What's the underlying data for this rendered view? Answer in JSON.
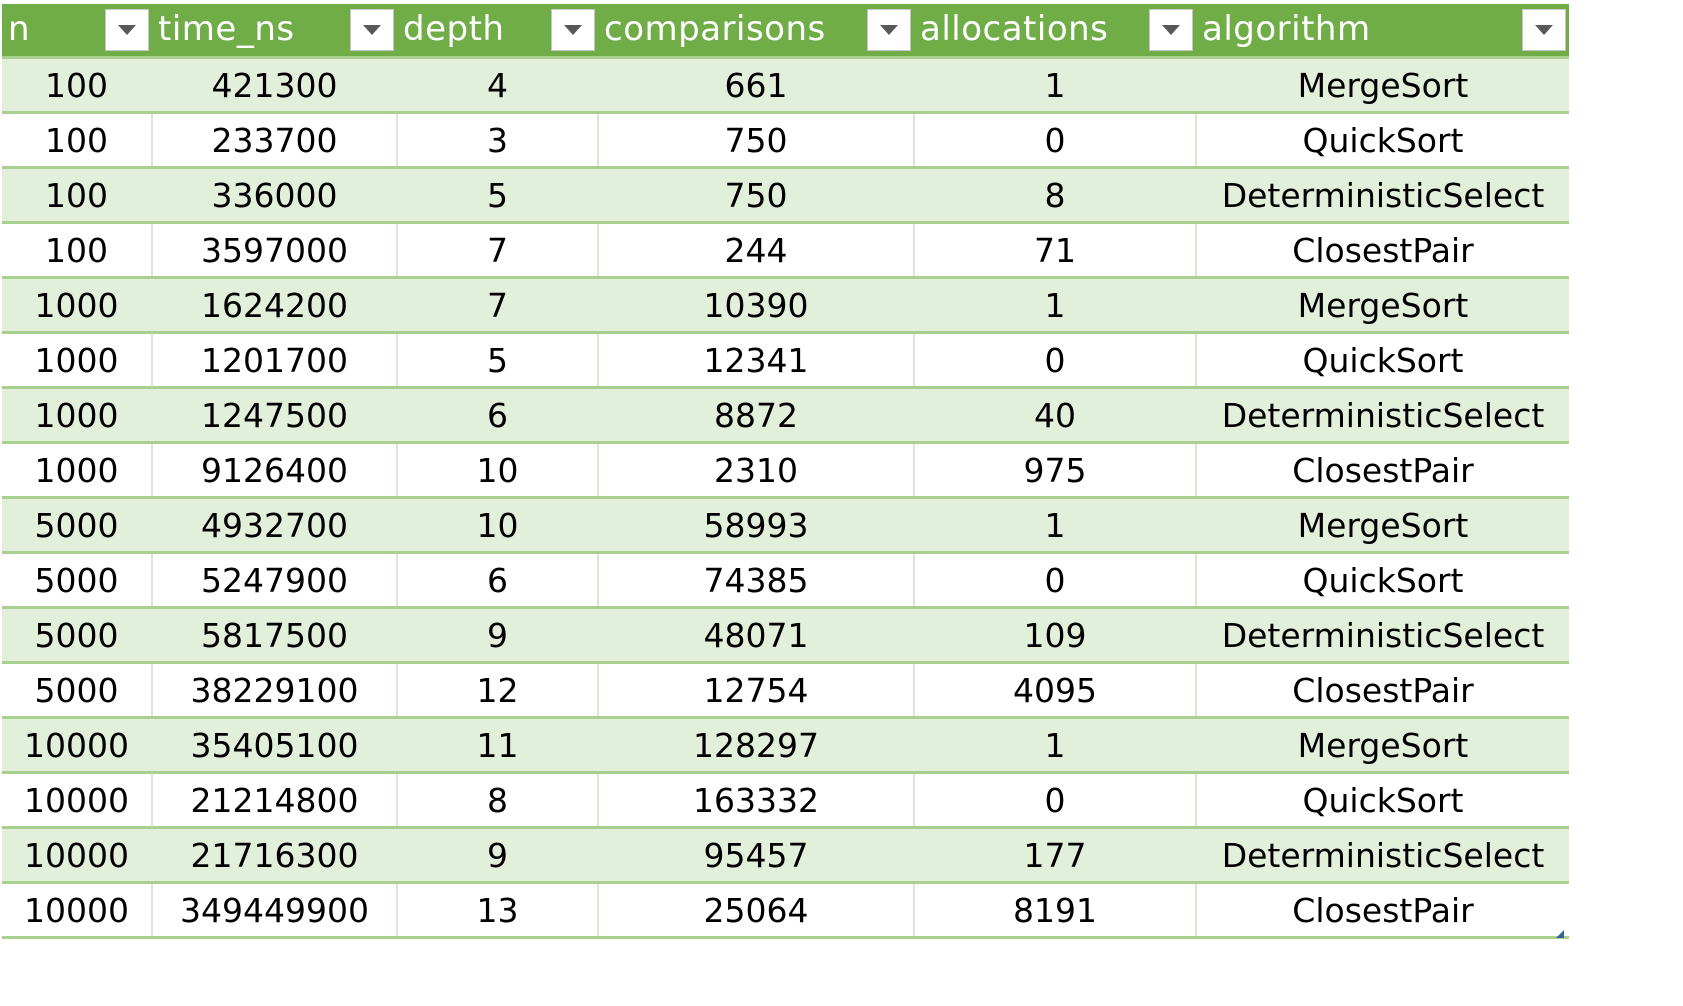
{
  "table": {
    "columns": [
      {
        "key": "n",
        "label": "n"
      },
      {
        "key": "time_ns",
        "label": "time_ns"
      },
      {
        "key": "depth",
        "label": "depth"
      },
      {
        "key": "comparisons",
        "label": "comparisons"
      },
      {
        "key": "allocations",
        "label": "allocations"
      },
      {
        "key": "algorithm",
        "label": "algorithm"
      }
    ],
    "rows": [
      [
        "100",
        "421300",
        "4",
        "661",
        "1",
        "MergeSort"
      ],
      [
        "100",
        "233700",
        "3",
        "750",
        "0",
        "QuickSort"
      ],
      [
        "100",
        "336000",
        "5",
        "750",
        "8",
        "DeterministicSelect"
      ],
      [
        "100",
        "3597000",
        "7",
        "244",
        "71",
        "ClosestPair"
      ],
      [
        "1000",
        "1624200",
        "7",
        "10390",
        "1",
        "MergeSort"
      ],
      [
        "1000",
        "1201700",
        "5",
        "12341",
        "0",
        "QuickSort"
      ],
      [
        "1000",
        "1247500",
        "6",
        "8872",
        "40",
        "DeterministicSelect"
      ],
      [
        "1000",
        "9126400",
        "10",
        "2310",
        "975",
        "ClosestPair"
      ],
      [
        "5000",
        "4932700",
        "10",
        "58993",
        "1",
        "MergeSort"
      ],
      [
        "5000",
        "5247900",
        "6",
        "74385",
        "0",
        "QuickSort"
      ],
      [
        "5000",
        "5817500",
        "9",
        "48071",
        "109",
        "DeterministicSelect"
      ],
      [
        "5000",
        "38229100",
        "12",
        "12754",
        "4095",
        "ClosestPair"
      ],
      [
        "10000",
        "35405100",
        "11",
        "128297",
        "1",
        "MergeSort"
      ],
      [
        "10000",
        "21214800",
        "8",
        "163332",
        "0",
        "QuickSort"
      ],
      [
        "10000",
        "21716300",
        "9",
        "95457",
        "177",
        "DeterministicSelect"
      ],
      [
        "10000",
        "349449900",
        "13",
        "25064",
        "8191",
        "ClosestPair"
      ]
    ]
  },
  "theme": {
    "header_bg": "#70ad47",
    "band_bg": "#e2efda",
    "row_border": "#a9d08e"
  },
  "icons": {
    "filter": "dropdown-arrow-icon",
    "resize": "resize-handle-icon"
  }
}
